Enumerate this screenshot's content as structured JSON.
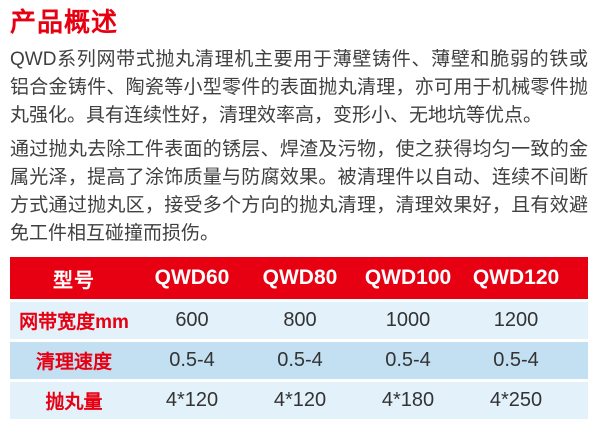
{
  "title": "产品概述",
  "paragraphs": [
    "QWD系列网带式抛丸清理机主要用于薄壁铸件、薄壁和脆弱的铁或铝合金铸件、陶瓷等小型零件的表面抛丸清理，亦可用于机械零件抛丸强化。具有连续性好，清理效率高，变形小、无地坑等优点。",
    "通过抛丸去除工件表面的锈层、焊渣及污物，使之获得均匀一致的金属光泽，提高了涂饰质量与防腐效果。被清理件以自动、连续不间断方式通过抛丸区，接受多个方向的抛丸清理，清理效果好，且有效避免工件相互碰撞而损伤。"
  ],
  "colors": {
    "accent_red": "#e60012",
    "header_text": "#ffffff",
    "row_light_blue": "#e3f1fa",
    "row_mid_blue": "#c2e0f1",
    "body_text": "#404040",
    "value_text": "#333333"
  },
  "table": {
    "header": [
      "型号",
      "QWD60",
      "QWD80",
      "QWD100",
      "QWD120"
    ],
    "rows": [
      {
        "label": "网带宽度mm",
        "values": [
          "600",
          "800",
          "1000",
          "1200"
        ]
      },
      {
        "label": "清理速度",
        "values": [
          "0.5-4",
          "0.5-4",
          "0.5-4",
          "0.5-4"
        ]
      },
      {
        "label": "抛丸量",
        "values": [
          "4*120",
          "4*120",
          "4*180",
          "4*250"
        ]
      }
    ]
  }
}
